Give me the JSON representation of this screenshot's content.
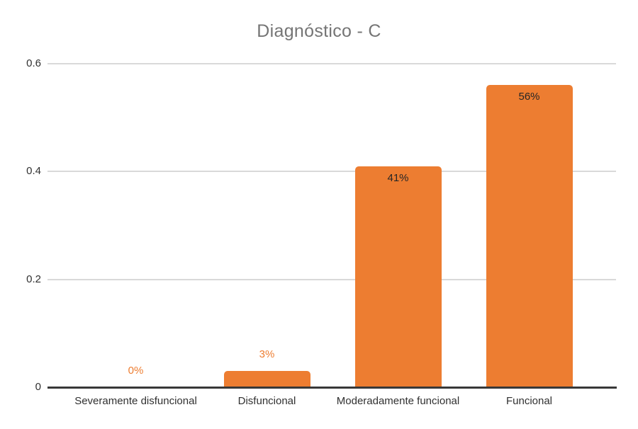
{
  "chart_data": {
    "type": "bar",
    "title": "Diagnóstico - C",
    "categories": [
      "Severamente disfuncional",
      "Disfuncional",
      "Moderadamente funcional",
      "Funcional"
    ],
    "values": [
      0,
      0.03,
      0.41,
      0.56
    ],
    "value_labels": [
      "0%",
      "3%",
      "41%",
      "56%"
    ],
    "yticks": [
      0,
      0.2,
      0.4,
      0.6
    ],
    "ytick_labels": [
      "0",
      "0.2",
      "0.4",
      "0.6"
    ],
    "ylim": [
      0,
      0.6
    ],
    "xlabel": "",
    "ylabel": "",
    "grid": true,
    "legend": false,
    "bar_color": "#ED7D31",
    "outside_label_color": "#ED7D31",
    "inside_label_color": "#262626",
    "title_color": "#757575",
    "axis_color": "#383838",
    "gridline_color": "#D9D9D9"
  }
}
